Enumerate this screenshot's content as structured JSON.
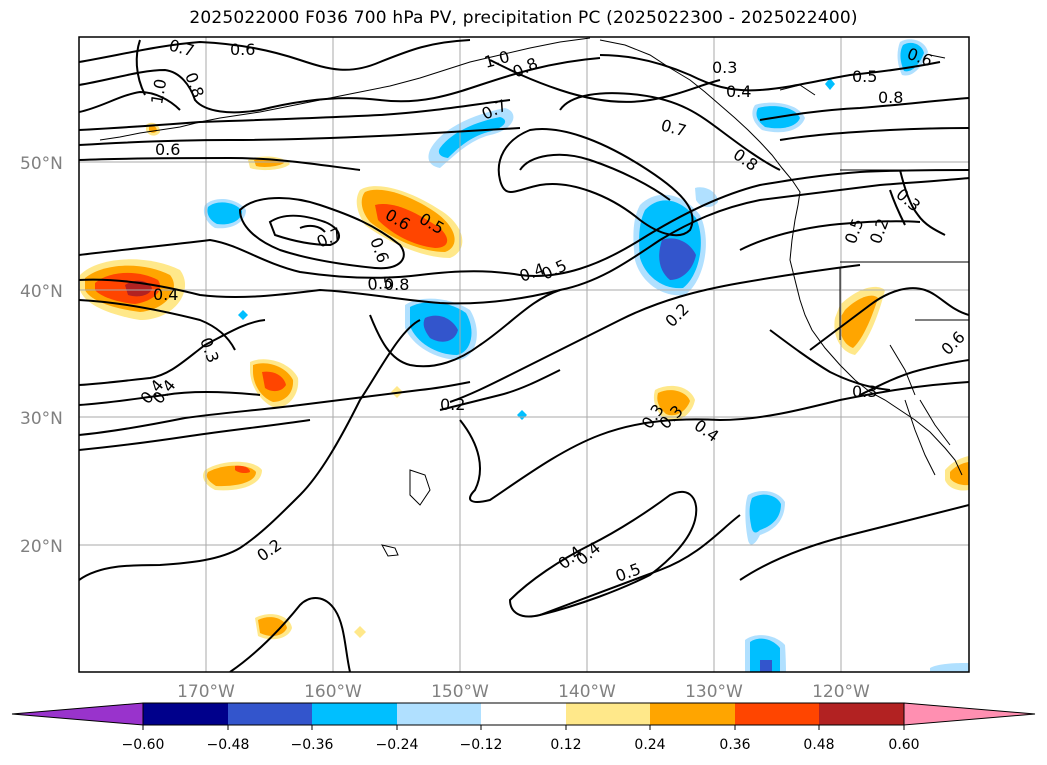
{
  "title": "2025022000 F036 700 hPa PV, precipitation PC (2025022300 - 2025022400)",
  "lat_labels": [
    "50°N",
    "40°N",
    "30°N",
    "20°N"
  ],
  "lon_labels": [
    "170°W",
    "160°W",
    "150°W",
    "140°W",
    "130°W",
    "120°W"
  ],
  "contour_labels": [
    "0.7",
    "0.6",
    "1.0",
    "0.8",
    "0.6",
    "1.0",
    "0.8",
    "0.7",
    "0.6",
    "0.5",
    "0.6",
    "0.7",
    "0.8",
    "0.5",
    "0.4",
    "0.3",
    "0.4",
    "0.2",
    "0.3",
    "0.4",
    "0.2",
    "0.4",
    "0.5",
    "0.3",
    "0.4",
    "0.7",
    "0.8",
    "0.5",
    "0.6",
    "0.8",
    "0.3",
    "0.5",
    "0.2",
    "0.3",
    "0.6",
    "0.4",
    "0.5",
    "0.3",
    "0.4",
    "0.4",
    "0.2"
  ],
  "colorbar": {
    "ticks": [
      "−0.60",
      "−0.48",
      "−0.36",
      "−0.24",
      "−0.12",
      "0.12",
      "0.24",
      "0.36",
      "0.48",
      "0.60"
    ],
    "colors": [
      "#9933cc",
      "#00008b",
      "#3355cc",
      "#00bfff",
      "#b0e0ff",
      "#ffffff",
      "#ffe88a",
      "#ffa500",
      "#ff4500",
      "#b22222",
      "#ff8fb1"
    ]
  }
}
